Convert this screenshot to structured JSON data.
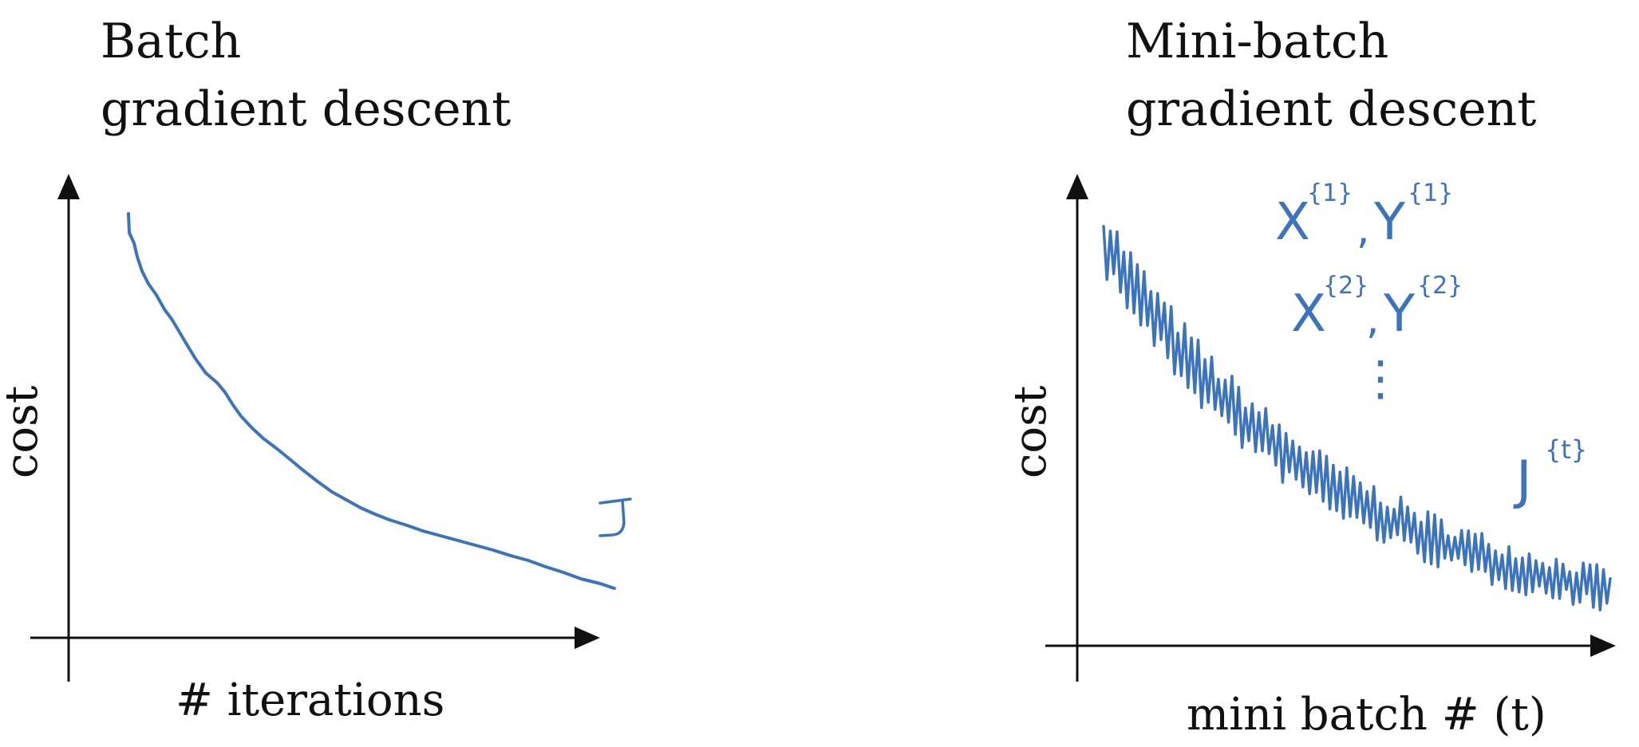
{
  "left_panel": {
    "title_line1": "Batch",
    "title_line2": "gradient descent",
    "y_axis_label": "cost",
    "x_axis_label": "# iterations",
    "curve_annotation": "J"
  },
  "right_panel": {
    "title_line1": "Mini-batch",
    "title_line2": "gradient descent",
    "y_axis_label": "cost",
    "x_axis_label": "mini batch # (t)",
    "batch_notes": [
      {
        "x": "X",
        "x_sup": "{1}",
        "sep": ",",
        "y": "Y",
        "y_sup": "{1}"
      },
      {
        "x": "X",
        "x_sup": "{2}",
        "sep": ",",
        "y": "Y",
        "y_sup": "{2}"
      }
    ],
    "ellipsis": "⋮",
    "curve_annotation": "J",
    "curve_annotation_sup": "{t}"
  },
  "colors": {
    "ink": "#3b73bd",
    "axis": "#111111"
  }
}
